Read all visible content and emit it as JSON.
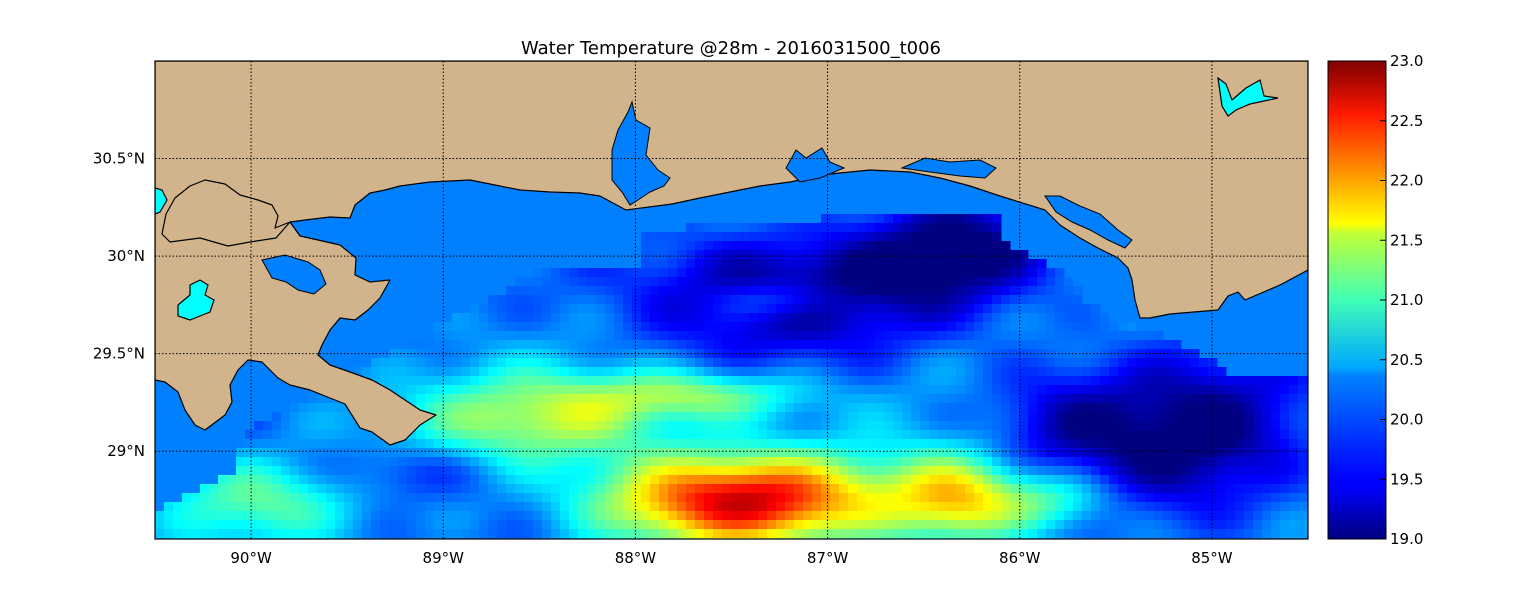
{
  "title": "Water Temperature @28m - 2016031500_t006",
  "map": {
    "lon_range": [
      -90.5,
      -84.5
    ],
    "lat_range": [
      28.55,
      31.0
    ],
    "lon_ticks": [
      {
        "value": -90,
        "label": "90°W"
      },
      {
        "value": -89,
        "label": "89°W"
      },
      {
        "value": -88,
        "label": "88°W"
      },
      {
        "value": -87,
        "label": "87°W"
      },
      {
        "value": -86,
        "label": "86°W"
      },
      {
        "value": -85,
        "label": "85°W"
      }
    ],
    "lat_ticks": [
      {
        "value": 30.5,
        "label": "30.5°N"
      },
      {
        "value": 30.0,
        "label": "30°N"
      },
      {
        "value": 29.5,
        "label": "29.5°N"
      },
      {
        "value": 29.0,
        "label": "29°N"
      }
    ],
    "grid": true,
    "colors": {
      "land": "#d2b48c",
      "nodata_ocean": "#0080ff",
      "lake": "#00ffff",
      "coastline": "#000000"
    }
  },
  "colorbar": {
    "colormap": "jet",
    "min": 19.0,
    "max": 23.0,
    "ticks": [
      "19.0",
      "19.5",
      "20.0",
      "20.5",
      "21.0",
      "21.5",
      "22.0",
      "22.5",
      "23.0"
    ]
  }
}
